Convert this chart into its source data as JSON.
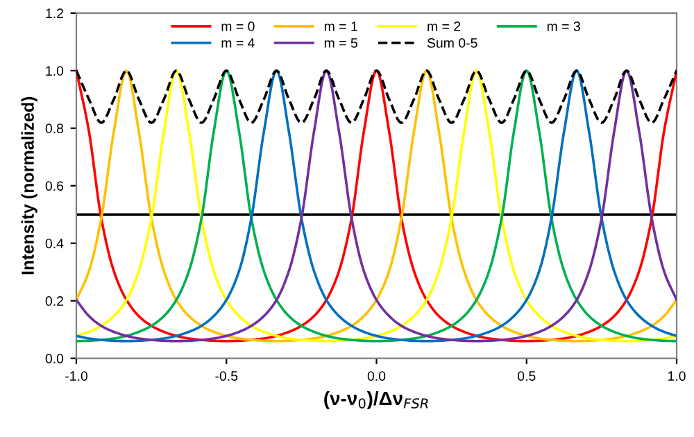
{
  "chart_data": {
    "type": "line",
    "xlabel": "(ν-ν$_{0}$)/Δν$_{FSR}$",
    "ylabel": "Intensity (normalized)",
    "x": [
      -1,
      -0.958,
      -0.917,
      -0.875,
      -0.833,
      -0.792,
      -0.75,
      -0.708,
      -0.667,
      -0.625,
      -0.583,
      -0.542,
      -0.5,
      -0.458,
      -0.417,
      -0.375,
      -0.333,
      -0.292,
      -0.25,
      -0.208,
      -0.167,
      -0.125,
      -0.083,
      -0.042,
      0,
      0.042,
      0.083,
      0.125,
      0.167,
      0.208,
      0.25,
      0.292,
      0.333,
      0.375,
      0.417,
      0.458,
      0.5,
      0.542,
      0.583,
      0.625,
      0.667,
      0.708,
      0.75,
      0.792,
      0.833,
      0.875,
      0.917,
      0.958,
      1
    ],
    "xlim": [
      -1,
      1
    ],
    "xticks": [
      {
        "value": -1,
        "label": "-1.0"
      },
      {
        "value": -0.5,
        "label": "-0.5"
      },
      {
        "value": 0,
        "label": "0.0"
      },
      {
        "value": 0.5,
        "label": "0.5"
      },
      {
        "value": 1,
        "label": "1.0"
      }
    ],
    "ylim": [
      0,
      1.2
    ],
    "yticks": [
      {
        "value": 0,
        "label": "0.0"
      },
      {
        "value": 0.2,
        "label": "0.2"
      },
      {
        "value": 0.4,
        "label": "0.4"
      },
      {
        "value": 0.6,
        "label": "0.6"
      },
      {
        "value": 0.8,
        "label": "0.8"
      },
      {
        "value": 1,
        "label": "1.0"
      },
      {
        "value": 1.2,
        "label": "1.2"
      }
    ],
    "grid": false,
    "legend": "top",
    "marker": "none",
    "ref_lines": [
      {
        "axis": "y",
        "value": 0.5,
        "color": "#000000",
        "line_style": "solid"
      }
    ],
    "series": [
      {
        "name": "m = 0",
        "color": "#ff0000",
        "values": [
          1.0,
          0.789,
          0.487,
          0.303,
          0.203,
          0.147,
          0.113,
          0.092,
          0.078,
          0.069,
          0.064,
          0.061,
          0.06,
          0.061,
          0.064,
          0.069,
          0.078,
          0.092,
          0.113,
          0.147,
          0.203,
          0.303,
          0.487,
          0.789,
          1.0,
          0.789,
          0.487,
          0.303,
          0.203,
          0.147,
          0.113,
          0.092,
          0.078,
          0.069,
          0.064,
          0.061,
          0.06,
          0.061,
          0.064,
          0.069,
          0.078,
          0.092,
          0.113,
          0.147,
          0.203,
          0.303,
          0.487,
          0.789,
          1.0
        ]
      },
      {
        "name": "m = 1",
        "color": "#ffc000",
        "values": [
          0.203,
          0.303,
          0.487,
          0.789,
          1.0,
          0.789,
          0.487,
          0.303,
          0.203,
          0.147,
          0.113,
          0.092,
          0.078,
          0.069,
          0.064,
          0.061,
          0.06,
          0.061,
          0.064,
          0.069,
          0.078,
          0.092,
          0.113,
          0.147,
          0.203,
          0.303,
          0.487,
          0.789,
          1.0,
          0.789,
          0.487,
          0.303,
          0.203,
          0.147,
          0.113,
          0.092,
          0.078,
          0.069,
          0.064,
          0.061,
          0.06,
          0.061,
          0.064,
          0.069,
          0.078,
          0.092,
          0.113,
          0.147,
          0.203
        ]
      },
      {
        "name": "m = 2",
        "color": "#ffff00",
        "values": [
          0.078,
          0.092,
          0.113,
          0.147,
          0.203,
          0.303,
          0.487,
          0.789,
          1.0,
          0.789,
          0.487,
          0.303,
          0.203,
          0.147,
          0.113,
          0.092,
          0.078,
          0.069,
          0.064,
          0.061,
          0.06,
          0.061,
          0.064,
          0.069,
          0.078,
          0.092,
          0.113,
          0.147,
          0.203,
          0.303,
          0.487,
          0.789,
          1.0,
          0.789,
          0.487,
          0.303,
          0.203,
          0.147,
          0.113,
          0.092,
          0.078,
          0.069,
          0.064,
          0.061,
          0.06,
          0.061,
          0.064,
          0.069,
          0.078
        ]
      },
      {
        "name": "m = 3",
        "color": "#00b050",
        "values": [
          0.06,
          0.061,
          0.064,
          0.069,
          0.078,
          0.092,
          0.113,
          0.147,
          0.203,
          0.303,
          0.487,
          0.789,
          1.0,
          0.789,
          0.487,
          0.303,
          0.203,
          0.147,
          0.113,
          0.092,
          0.078,
          0.069,
          0.064,
          0.061,
          0.06,
          0.061,
          0.064,
          0.069,
          0.078,
          0.092,
          0.113,
          0.147,
          0.203,
          0.303,
          0.487,
          0.789,
          1.0,
          0.789,
          0.487,
          0.303,
          0.203,
          0.147,
          0.113,
          0.092,
          0.078,
          0.069,
          0.064,
          0.061,
          0.06
        ]
      },
      {
        "name": "m = 4",
        "color": "#0070c0",
        "values": [
          0.078,
          0.069,
          0.064,
          0.061,
          0.06,
          0.061,
          0.064,
          0.069,
          0.078,
          0.092,
          0.113,
          0.147,
          0.203,
          0.303,
          0.487,
          0.789,
          1.0,
          0.789,
          0.487,
          0.303,
          0.203,
          0.147,
          0.113,
          0.092,
          0.078,
          0.069,
          0.064,
          0.061,
          0.06,
          0.061,
          0.064,
          0.069,
          0.078,
          0.092,
          0.113,
          0.147,
          0.203,
          0.303,
          0.487,
          0.789,
          1.0,
          0.789,
          0.487,
          0.303,
          0.203,
          0.147,
          0.113,
          0.092,
          0.078
        ]
      },
      {
        "name": "m = 5",
        "color": "#7030a0",
        "values": [
          0.203,
          0.147,
          0.113,
          0.092,
          0.078,
          0.069,
          0.064,
          0.061,
          0.06,
          0.061,
          0.064,
          0.069,
          0.078,
          0.092,
          0.113,
          0.147,
          0.203,
          0.303,
          0.487,
          0.789,
          1.0,
          0.789,
          0.487,
          0.303,
          0.203,
          0.147,
          0.113,
          0.092,
          0.078,
          0.069,
          0.064,
          0.061,
          0.06,
          0.061,
          0.064,
          0.069,
          0.078,
          0.092,
          0.113,
          0.147,
          0.203,
          0.303,
          0.487,
          0.789,
          1.0,
          0.789,
          0.487,
          0.303,
          0.203
        ]
      },
      {
        "name": "Sum 0-5",
        "color": "#000000",
        "line_style": "dashed",
        "values": [
          1.0,
          0.901,
          0.819,
          0.901,
          1.0,
          0.901,
          0.819,
          0.901,
          1.0,
          0.901,
          0.819,
          0.901,
          1.0,
          0.901,
          0.819,
          0.901,
          1.0,
          0.901,
          0.819,
          0.901,
          1.0,
          0.901,
          0.819,
          0.901,
          1.0,
          0.901,
          0.819,
          0.901,
          1.0,
          0.901,
          0.819,
          0.901,
          1.0,
          0.901,
          0.819,
          0.901,
          1.0,
          0.901,
          0.819,
          0.901,
          1.0,
          0.901,
          0.819,
          0.901,
          1.0,
          0.901,
          0.819,
          0.901,
          1.0
        ]
      }
    ]
  }
}
